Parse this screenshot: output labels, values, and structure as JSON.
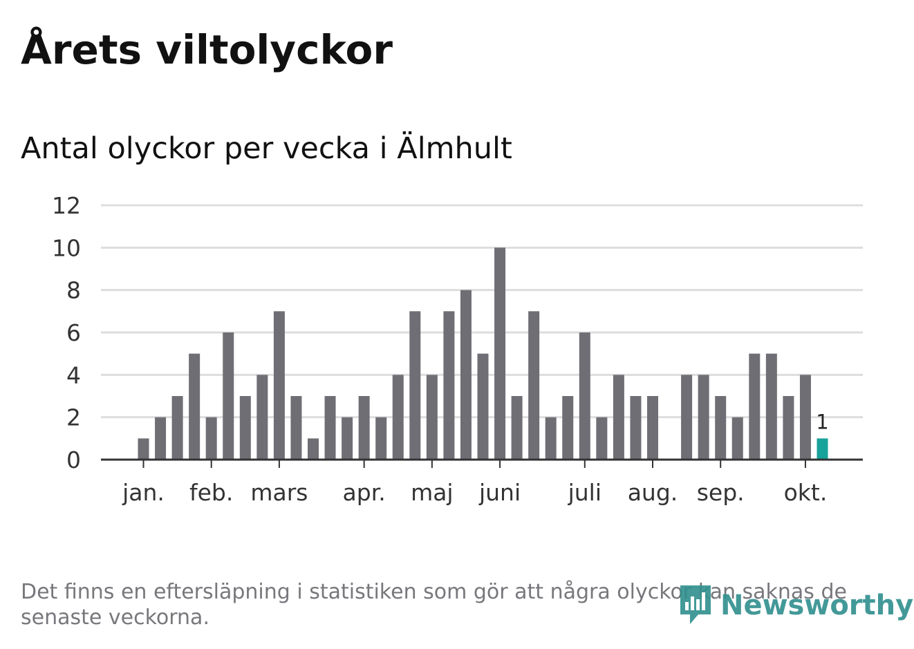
{
  "title": "Årets viltolyckor",
  "subtitle": "Antal olyckor per vecka i Älmhult",
  "footnote": "Det finns en eftersläpning i statistiken som gör att några olyckor kan saknas de senaste veckorna.",
  "logo_text": "Newsworthy",
  "colors": {
    "bar": "#6f6e74",
    "highlight": "#17a29a",
    "grid": "#dddddd",
    "axis": "#333333",
    "logo": "#2f8f8d"
  },
  "chart_data": {
    "type": "bar",
    "title": "Antal olyckor per vecka i Älmhult",
    "xlabel": "",
    "ylabel": "",
    "ylim": [
      0,
      12
    ],
    "yticks": [
      0,
      2,
      4,
      6,
      8,
      10,
      12
    ],
    "grid": true,
    "values": [
      1,
      2,
      3,
      5,
      2,
      6,
      3,
      4,
      7,
      3,
      1,
      3,
      2,
      3,
      2,
      4,
      7,
      4,
      7,
      8,
      5,
      10,
      3,
      7,
      2,
      3,
      6,
      2,
      4,
      3,
      3,
      0,
      4,
      4,
      3,
      2,
      5,
      5,
      3,
      4,
      1
    ],
    "month_labels": [
      {
        "label": "jan.",
        "week_index": 0
      },
      {
        "label": "feb.",
        "week_index": 4
      },
      {
        "label": "mars",
        "week_index": 8
      },
      {
        "label": "apr.",
        "week_index": 13
      },
      {
        "label": "maj",
        "week_index": 17
      },
      {
        "label": "juni",
        "week_index": 21
      },
      {
        "label": "juli",
        "week_index": 26
      },
      {
        "label": "aug.",
        "week_index": 30
      },
      {
        "label": "sep.",
        "week_index": 34
      },
      {
        "label": "okt.",
        "week_index": 39
      }
    ],
    "highlight_last": true,
    "last_label": "1"
  }
}
